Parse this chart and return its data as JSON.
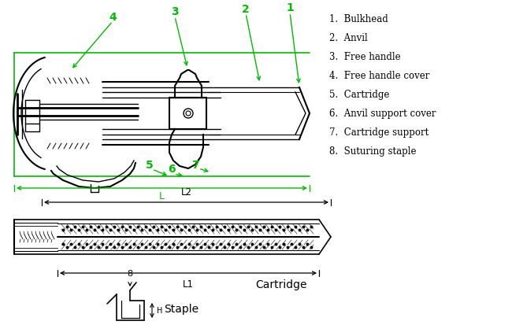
{
  "bg_color": "#ffffff",
  "green_color": "#00bb00",
  "black_color": "#000000",
  "legend_items": [
    "1.  Bulkhead",
    "2.  Anvil",
    "3.  Free handle",
    "4.  Free handle cover",
    "5.  Cartridge",
    "6.  Anvil support cover",
    "7.  Cartridge support",
    "8.  Suturing staple"
  ],
  "label_L": "L",
  "label_L1": "L1",
  "label_L2": "L2",
  "label_8": "8",
  "label_H": "H",
  "cartridge_text": "Cartridge",
  "staple_text": "Staple",
  "fig_width": 6.5,
  "fig_height": 4.14,
  "dpi": 100
}
